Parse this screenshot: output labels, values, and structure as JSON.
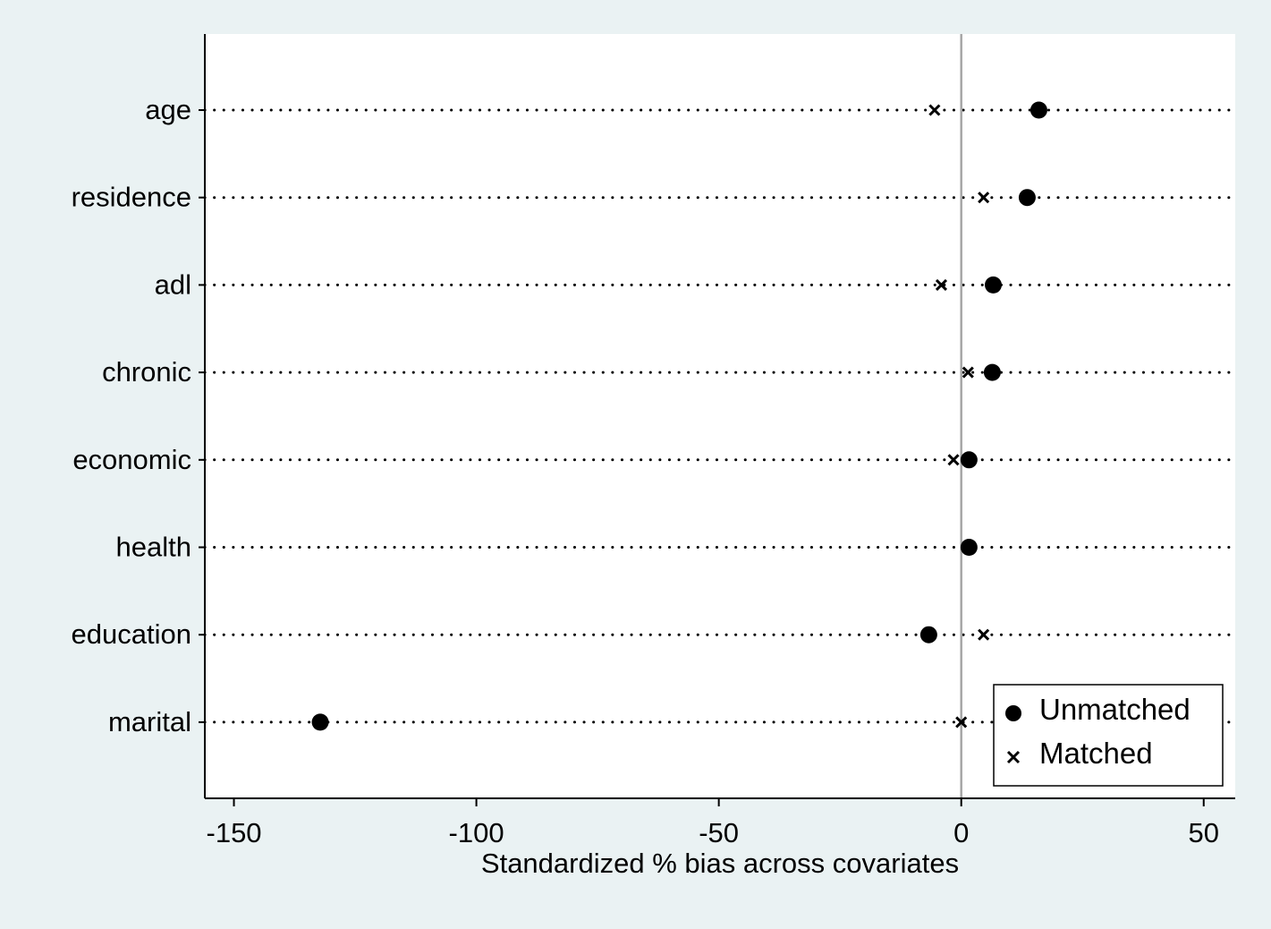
{
  "chart_data": {
    "type": "scatter",
    "title": "",
    "xlabel": "Standardized % bias across covariates",
    "ylabel": "",
    "xlim": [
      -156,
      56.5
    ],
    "xticks": [
      -150,
      -100,
      -50,
      0,
      50
    ],
    "xtick_labels": [
      "-150",
      "-100",
      "-50",
      "0",
      "50"
    ],
    "categories": [
      "age",
      "residence",
      "adl",
      "chronic",
      "economic",
      "health",
      "education",
      "marital"
    ],
    "series": [
      {
        "name": "Unmatched",
        "marker": "circle",
        "values": [
          16.0,
          13.6,
          6.6,
          6.4,
          1.6,
          1.6,
          -6.7,
          -132.2
        ]
      },
      {
        "name": "Matched",
        "marker": "x",
        "values": [
          -5.5,
          4.6,
          -4.1,
          1.4,
          -1.6,
          1.6,
          4.6,
          0.0
        ]
      }
    ],
    "reference_line_x": 0,
    "grid": "dotted horizontal per category",
    "legend_position": "bottom-right",
    "colors": {
      "page_background": "#eaf2f3",
      "plot_background": "#ffffff",
      "marker": "#000000",
      "reference_line": "#a6a6a6"
    }
  }
}
